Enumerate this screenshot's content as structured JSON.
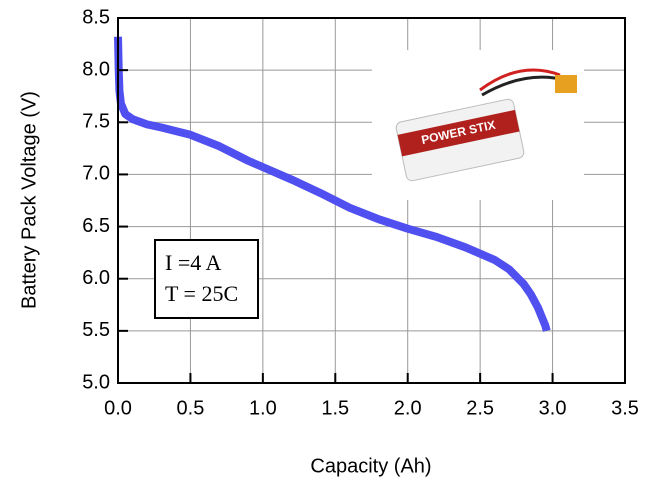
{
  "chart_data": {
    "type": "line",
    "xlabel": "Capacity (Ah)",
    "ylabel": "Battery Pack Voltage (V)",
    "annotations": [
      "I =4 A",
      "T = 25C"
    ],
    "series": [
      {
        "color": "#5050f0",
        "x": [
          0,
          0.005,
          0.01,
          0.02,
          0.05,
          0.1,
          0.2,
          0.3,
          0.5,
          0.7,
          0.9,
          1.0,
          1.2,
          1.4,
          1.6,
          1.8,
          2.0,
          2.2,
          2.4,
          2.6,
          2.7,
          2.8,
          2.85,
          2.9,
          2.95,
          2.96
        ],
        "values": [
          8.32,
          8.0,
          7.8,
          7.68,
          7.58,
          7.53,
          7.48,
          7.45,
          7.38,
          7.27,
          7.13,
          7.07,
          6.95,
          6.82,
          6.68,
          6.57,
          6.48,
          6.4,
          6.3,
          6.18,
          6.09,
          5.95,
          5.85,
          5.72,
          5.55,
          5.5
        ]
      }
    ],
    "xlim": [
      0,
      3.5
    ],
    "xticks": [
      {
        "value": 0,
        "label": "0.0"
      },
      0.5,
      {
        "value": 1,
        "label": "1.0"
      },
      1.5,
      {
        "value": 2,
        "label": "2.0"
      },
      2.5,
      {
        "value": 3,
        "label": "3.0"
      },
      3.5
    ],
    "ylim": [
      5,
      8.5
    ],
    "yticks": [
      {
        "value": 5,
        "label": "5.0"
      },
      5.5,
      {
        "value": 6,
        "label": "6.0"
      },
      6.5,
      {
        "value": 7,
        "label": "7.0"
      },
      7.5,
      {
        "value": 8,
        "label": "8.0"
      },
      8.5
    ],
    "grid": true
  }
}
